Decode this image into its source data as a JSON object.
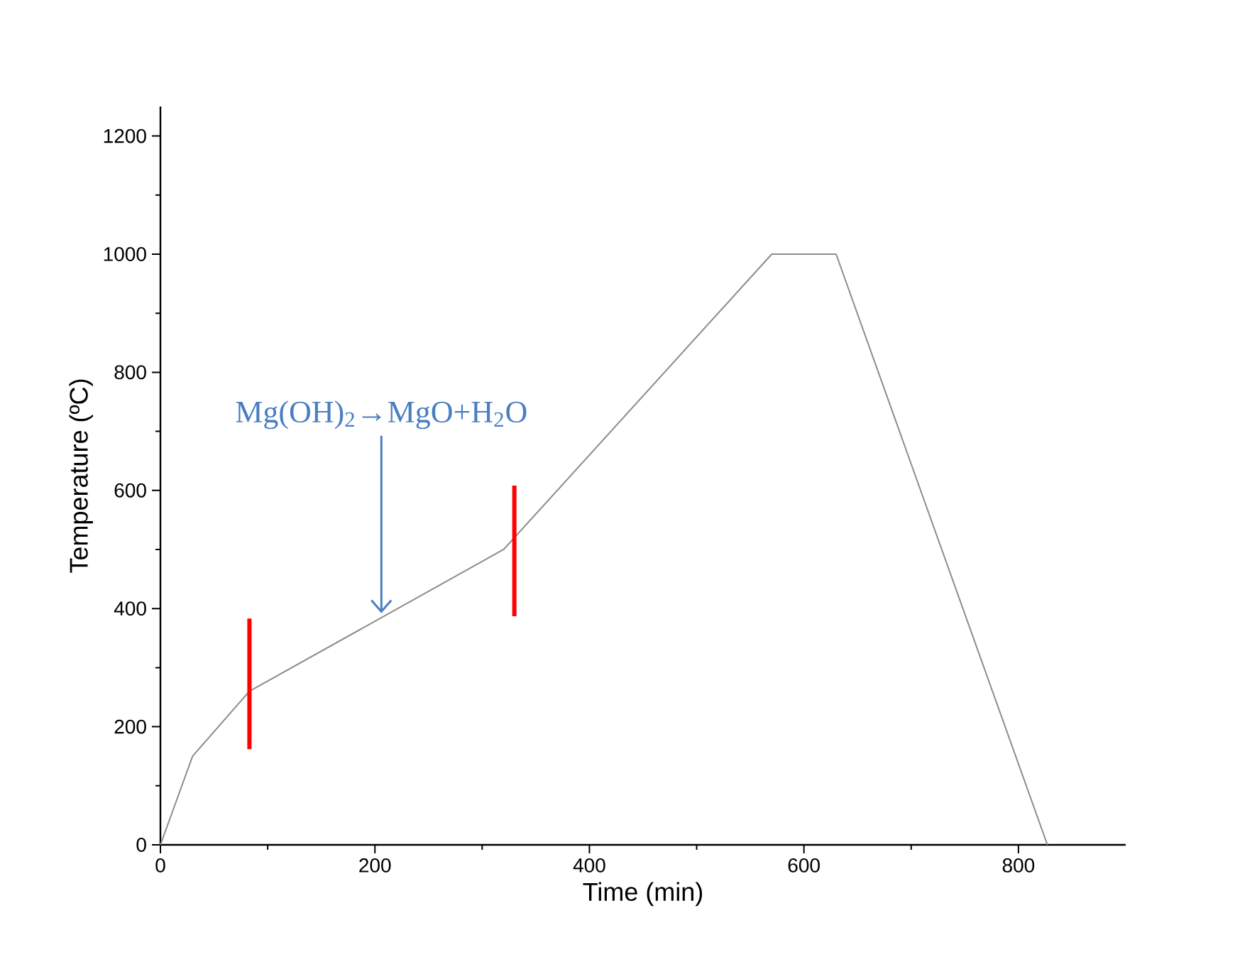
{
  "chart_data": {
    "type": "line",
    "xlabel": "Time (min)",
    "ylabel": "Temperature (ºC)",
    "xlim": [
      0,
      900
    ],
    "ylim": [
      0,
      1250
    ],
    "xticks": [
      0,
      200,
      400,
      600,
      800
    ],
    "yticks": [
      0,
      200,
      400,
      600,
      800,
      1000,
      1200
    ],
    "grid": false,
    "legend": false,
    "marker": "none",
    "line_style": "solid",
    "series": [
      {
        "color": "#8c8c8c",
        "x": [
          0,
          30,
          83,
          320,
          570,
          630,
          827
        ],
        "values": [
          0,
          150,
          260,
          500,
          1000,
          1000,
          0
        ]
      },
      {
        "color": "#ff0000",
        "x": [
          83,
          83
        ],
        "values": [
          162,
          383
        ]
      },
      {
        "color": "#ff0000",
        "x": [
          330,
          330
        ],
        "values": [
          387,
          608
        ]
      }
    ],
    "annotations": [
      {
        "text": "Mg(OH)$_{2}$→MgO+H$_{2}$O",
        "x": 206,
        "y": 392
      }
    ]
  }
}
